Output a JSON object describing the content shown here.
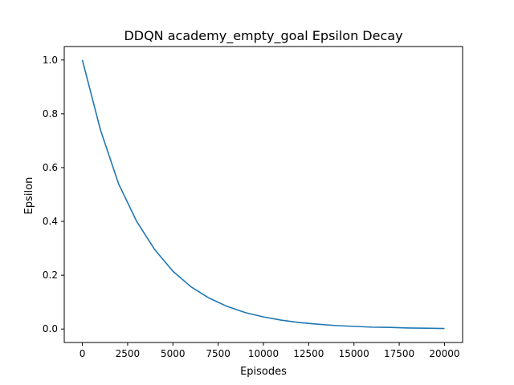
{
  "chart_data": {
    "type": "line",
    "title": "DDQN academy_empty_goal Epsilon Decay",
    "xlabel": "Episodes",
    "ylabel": "Epsilon",
    "xlim": [
      -1000,
      21000
    ],
    "ylim": [
      -0.05,
      1.05
    ],
    "xticks": [
      0,
      2500,
      5000,
      7500,
      10000,
      12500,
      15000,
      17500,
      20000
    ],
    "xtick_labels": [
      "0",
      "2500",
      "5000",
      "7500",
      "10000",
      "12500",
      "15000",
      "17500",
      "20000"
    ],
    "yticks": [
      0.0,
      0.2,
      0.4,
      0.6,
      0.8,
      1.0
    ],
    "ytick_labels": [
      "0.0",
      "0.2",
      "0.4",
      "0.6",
      "0.8",
      "1.0"
    ],
    "grid": false,
    "legend": "none",
    "series": [
      {
        "color": "#1f77b4",
        "x": [
          0,
          1000,
          2000,
          3000,
          4000,
          5000,
          6000,
          7000,
          8000,
          9000,
          10000,
          11000,
          12000,
          13000,
          14000,
          15000,
          16000,
          17000,
          18000,
          19000,
          20000
        ],
        "y": [
          1.0,
          0.74,
          0.54,
          0.4,
          0.295,
          0.215,
          0.157,
          0.115,
          0.084,
          0.061,
          0.045,
          0.033,
          0.024,
          0.018,
          0.013,
          0.01,
          0.007,
          0.006,
          0.004,
          0.003,
          0.002
        ]
      }
    ]
  }
}
